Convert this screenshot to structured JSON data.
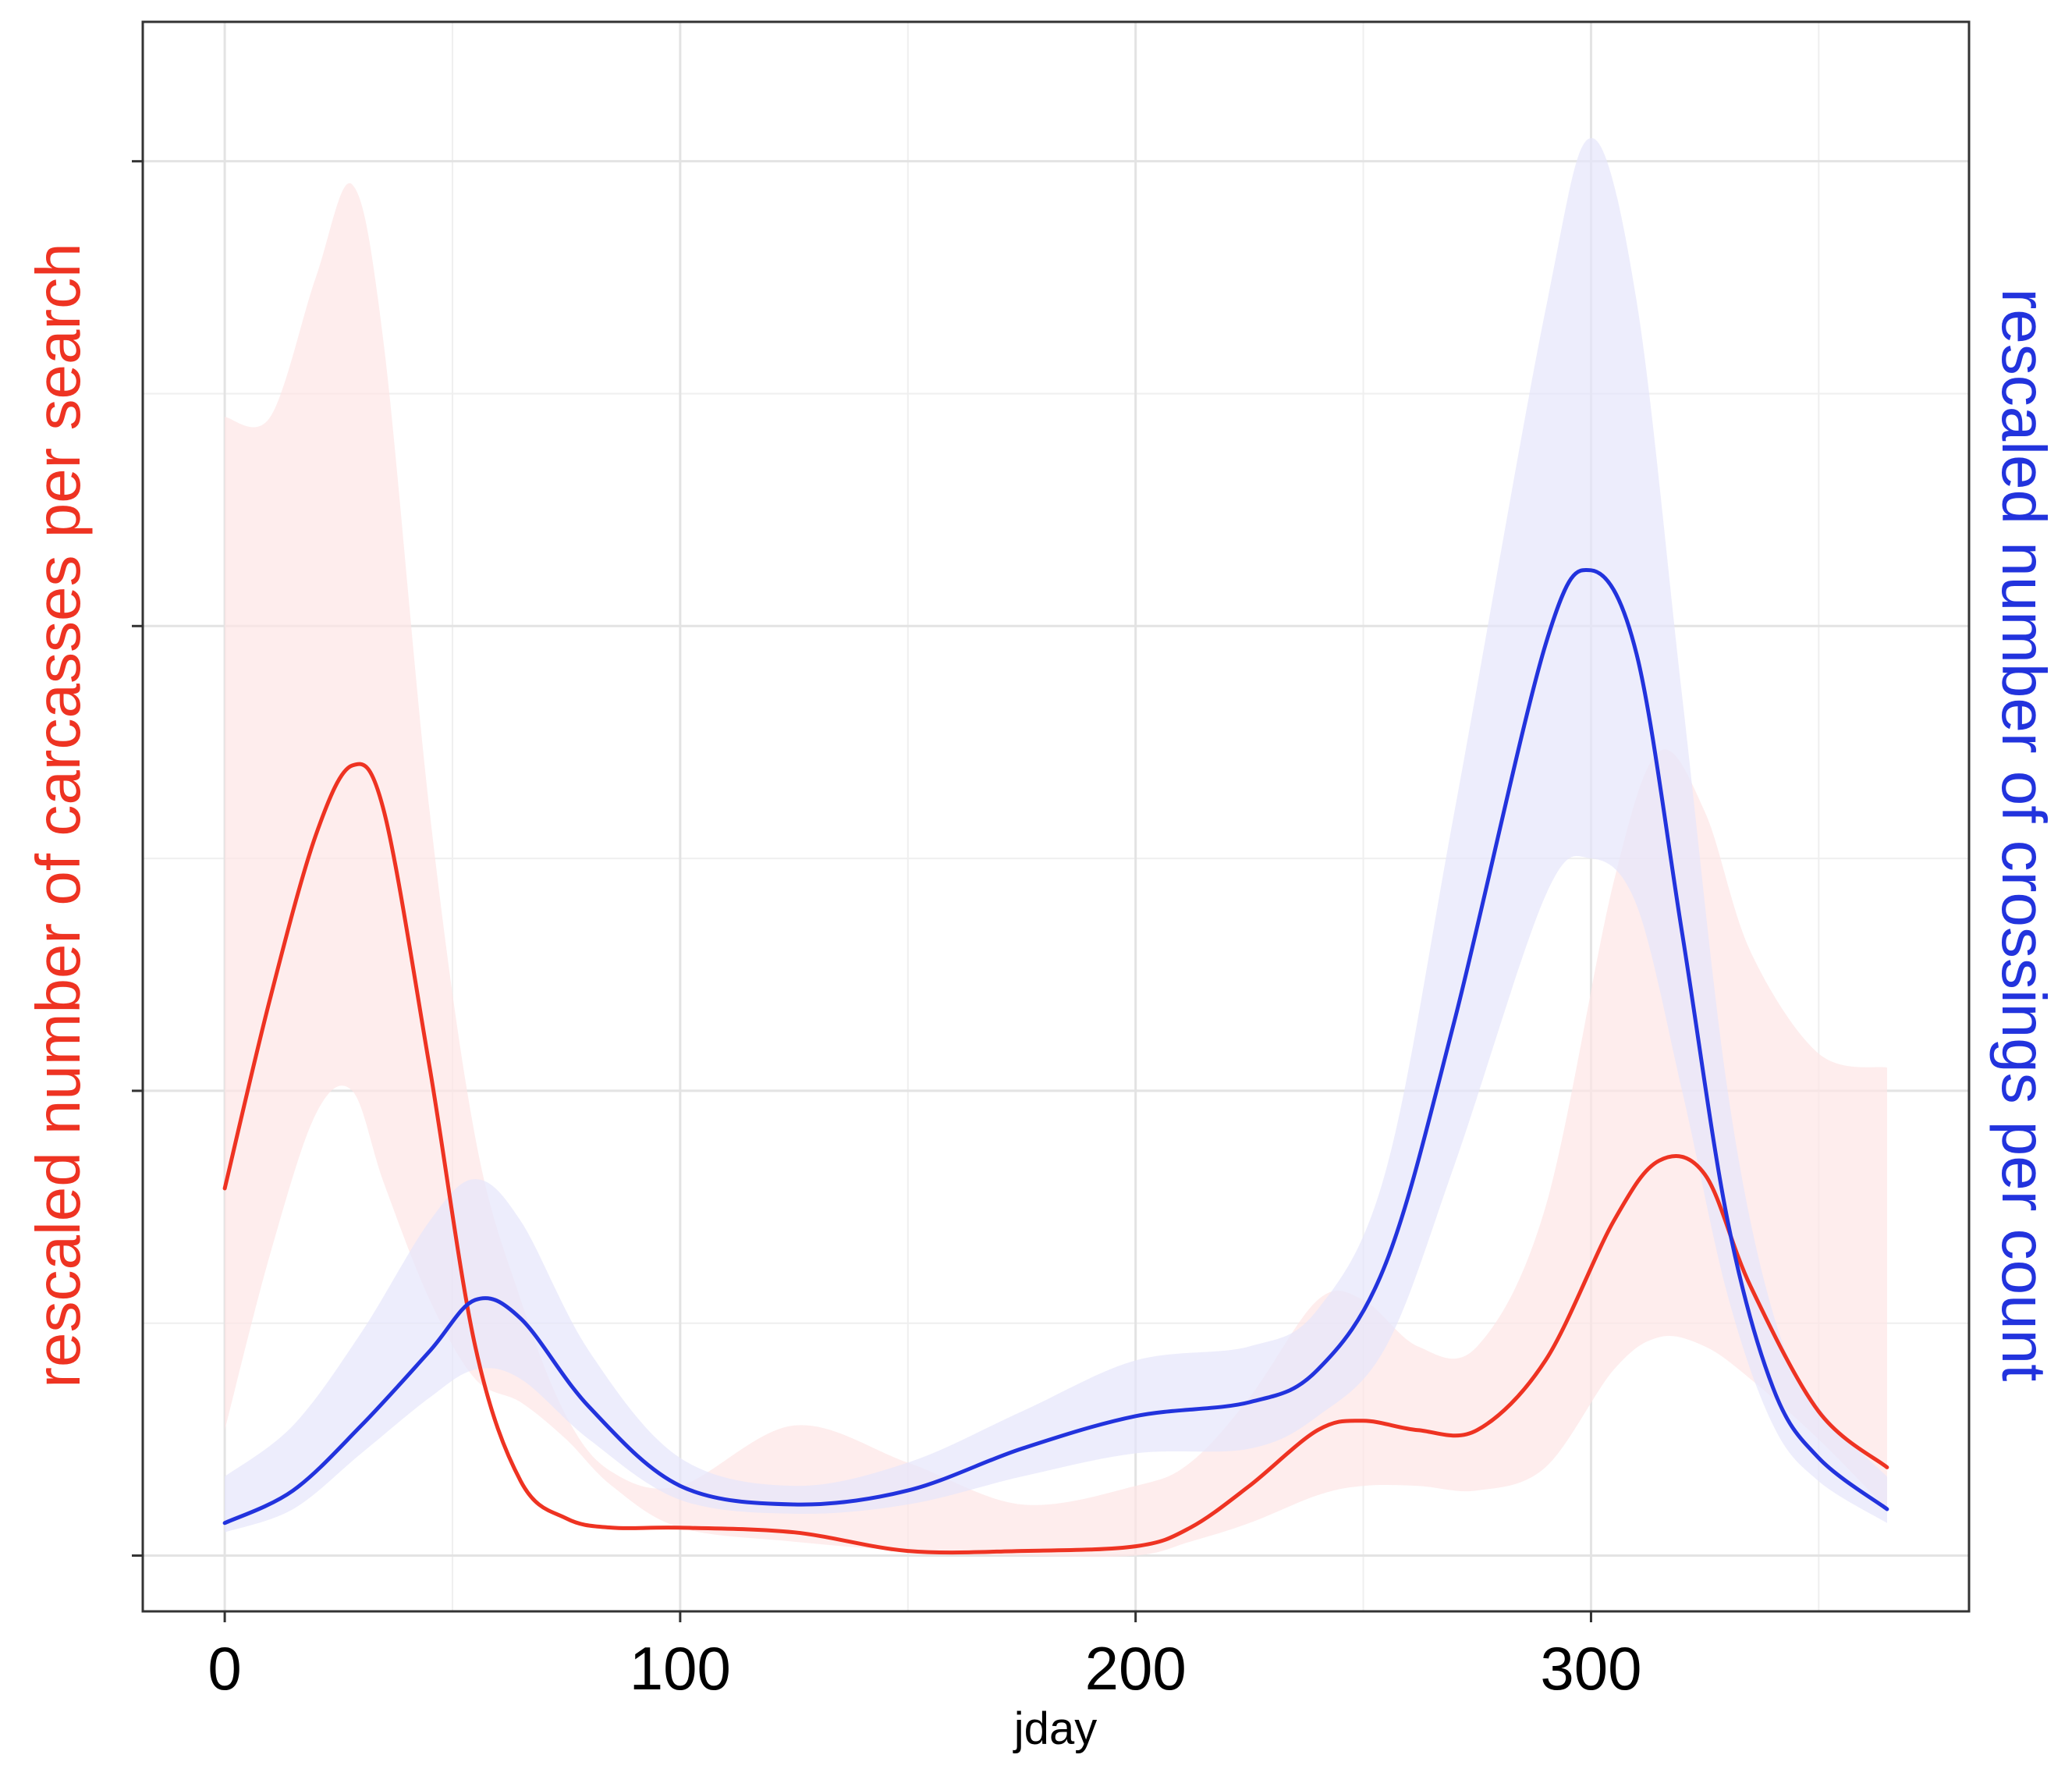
{
  "chart_data": {
    "type": "line",
    "title": "",
    "xlabel": "jday",
    "ylabel_left": "rescaled number of carcasses per search",
    "ylabel_right": "rescaled number of crossings per count",
    "xlim": [
      -18,
      383
    ],
    "ylim": [
      -0.12,
      3.3
    ],
    "x_ticks": [
      0,
      100,
      200,
      300
    ],
    "x_tick_labels": [
      "0",
      "100",
      "200",
      "300"
    ],
    "y_ticks": [
      0,
      1,
      2,
      3
    ],
    "y_tick_labels": [
      "",
      "",
      "",
      ""
    ],
    "grid": true,
    "colors": {
      "carcasses": "#ee3322",
      "carcasses_band": "#fde6e6",
      "crossings": "#2233dd",
      "crossings_band": "#e6e6fb",
      "left_label": "#ee3322",
      "right_label": "#2233dd"
    },
    "series": [
      {
        "key": "carcasses",
        "x": [
          0,
          10,
          20,
          28,
          35,
          45,
          55,
          65,
          75,
          85,
          100,
          125,
          150,
          175,
          200,
          212,
          225,
          240,
          250,
          262,
          275,
          290,
          305,
          315,
          325,
          335,
          350,
          365
        ],
        "y": [
          0.79,
          1.2,
          1.55,
          1.7,
          1.6,
          1.05,
          0.45,
          0.16,
          0.08,
          0.06,
          0.06,
          0.05,
          0.01,
          0.01,
          0.02,
          0.06,
          0.15,
          0.27,
          0.29,
          0.27,
          0.27,
          0.42,
          0.72,
          0.85,
          0.82,
          0.58,
          0.31,
          0.19
        ],
        "lower": [
          0.27,
          0.65,
          0.95,
          1.0,
          0.8,
          0.55,
          0.38,
          0.33,
          0.25,
          0.15,
          0.06,
          0.03,
          0.01,
          0.0,
          0.0,
          0.03,
          0.07,
          0.13,
          0.15,
          0.15,
          0.14,
          0.19,
          0.4,
          0.47,
          0.45,
          0.38,
          0.25,
          0.1
        ],
        "upper": [
          2.45,
          2.45,
          2.75,
          2.95,
          2.6,
          1.6,
          0.9,
          0.55,
          0.3,
          0.18,
          0.15,
          0.28,
          0.2,
          0.11,
          0.15,
          0.2,
          0.34,
          0.55,
          0.55,
          0.45,
          0.45,
          0.75,
          1.45,
          1.73,
          1.6,
          1.3,
          1.08,
          1.05
        ]
      },
      {
        "key": "crossings",
        "x": [
          0,
          15,
          30,
          45,
          55,
          65,
          80,
          100,
          125,
          150,
          175,
          200,
          225,
          240,
          255,
          270,
          290,
          300,
          310,
          320,
          330,
          340,
          350,
          365
        ],
        "y": [
          0.07,
          0.14,
          0.28,
          0.44,
          0.55,
          0.51,
          0.32,
          0.15,
          0.11,
          0.14,
          0.23,
          0.3,
          0.33,
          0.4,
          0.63,
          1.15,
          1.96,
          2.12,
          1.94,
          1.34,
          0.72,
          0.36,
          0.21,
          0.1
        ],
        "lower": [
          0.05,
          0.1,
          0.22,
          0.34,
          0.4,
          0.38,
          0.25,
          0.12,
          0.09,
          0.11,
          0.17,
          0.22,
          0.23,
          0.3,
          0.45,
          0.84,
          1.42,
          1.5,
          1.4,
          1.0,
          0.56,
          0.28,
          0.16,
          0.07
        ],
        "upper": [
          0.17,
          0.28,
          0.48,
          0.72,
          0.81,
          0.72,
          0.44,
          0.21,
          0.15,
          0.2,
          0.31,
          0.42,
          0.45,
          0.53,
          0.83,
          1.6,
          2.68,
          3.05,
          2.7,
          1.85,
          1.0,
          0.52,
          0.32,
          0.17
        ]
      }
    ]
  }
}
